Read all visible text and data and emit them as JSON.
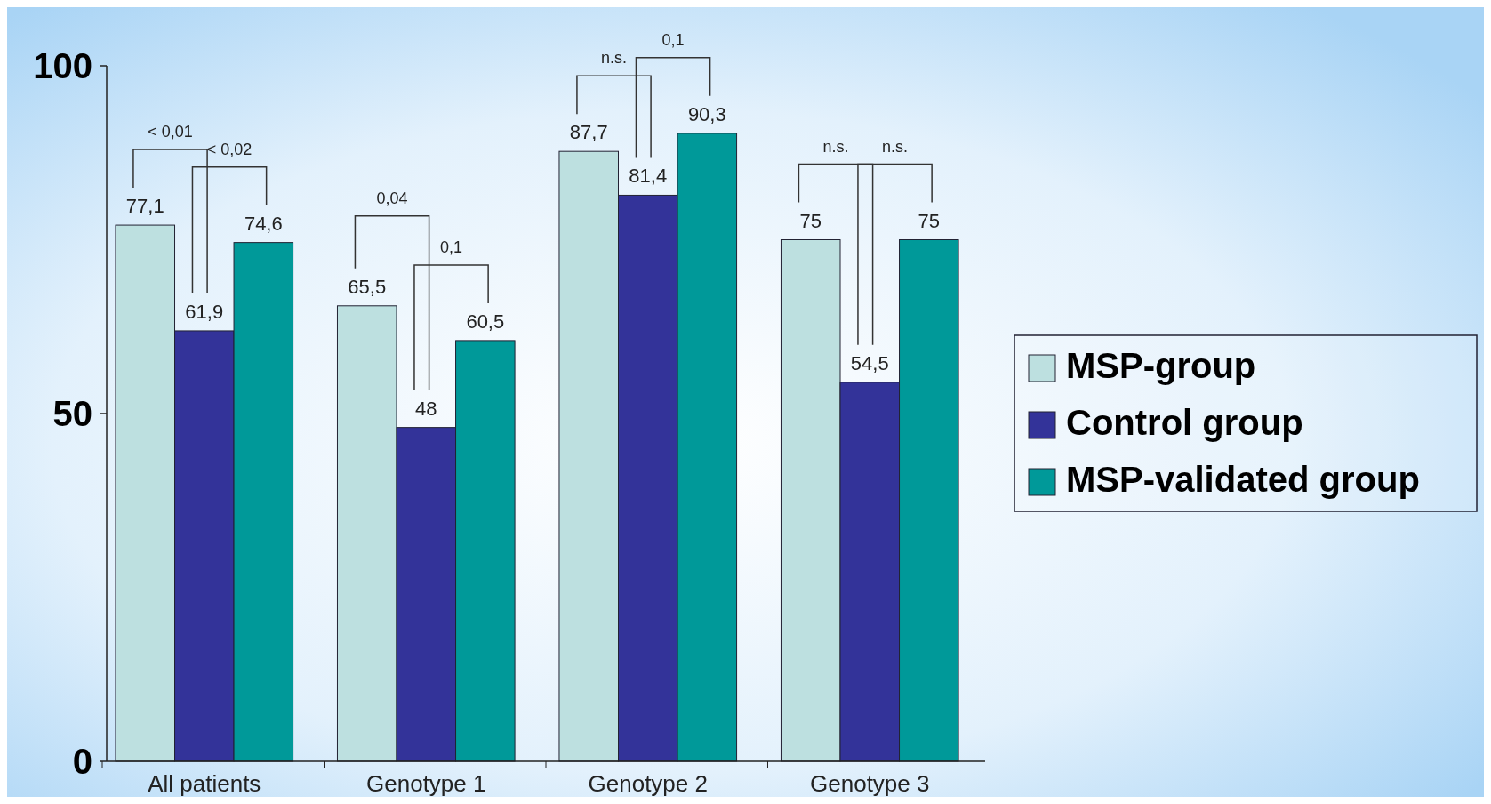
{
  "chart_data": {
    "type": "bar",
    "categories": [
      "All patients",
      "Genotype 1",
      "Genotype 2",
      "Genotype 3"
    ],
    "series": [
      {
        "name": "MSP-group",
        "color": "#bde0e0",
        "values": [
          77.1,
          65.5,
          87.7,
          75
        ],
        "value_labels": [
          "77,1",
          "65,5",
          "87,7",
          "75"
        ]
      },
      {
        "name": "Control group",
        "color": "#333399",
        "values": [
          61.9,
          48,
          81.4,
          54.5
        ],
        "value_labels": [
          "61,9",
          "48",
          "81,4",
          "54,5"
        ]
      },
      {
        "name": "MSP-validated group",
        "color": "#009999",
        "values": [
          74.6,
          60.5,
          90.3,
          75
        ],
        "value_labels": [
          "74,6",
          "60,5",
          "90,3",
          "75"
        ]
      }
    ],
    "ylim": [
      0,
      100
    ],
    "yticks": [
      0,
      50,
      100
    ],
    "grid": false,
    "legend": "right",
    "annotations": [
      "< 0,01",
      "< 0,02",
      "0,04",
      "0,1",
      "n.s.",
      "0,1",
      "n.s.",
      "n.s."
    ]
  }
}
